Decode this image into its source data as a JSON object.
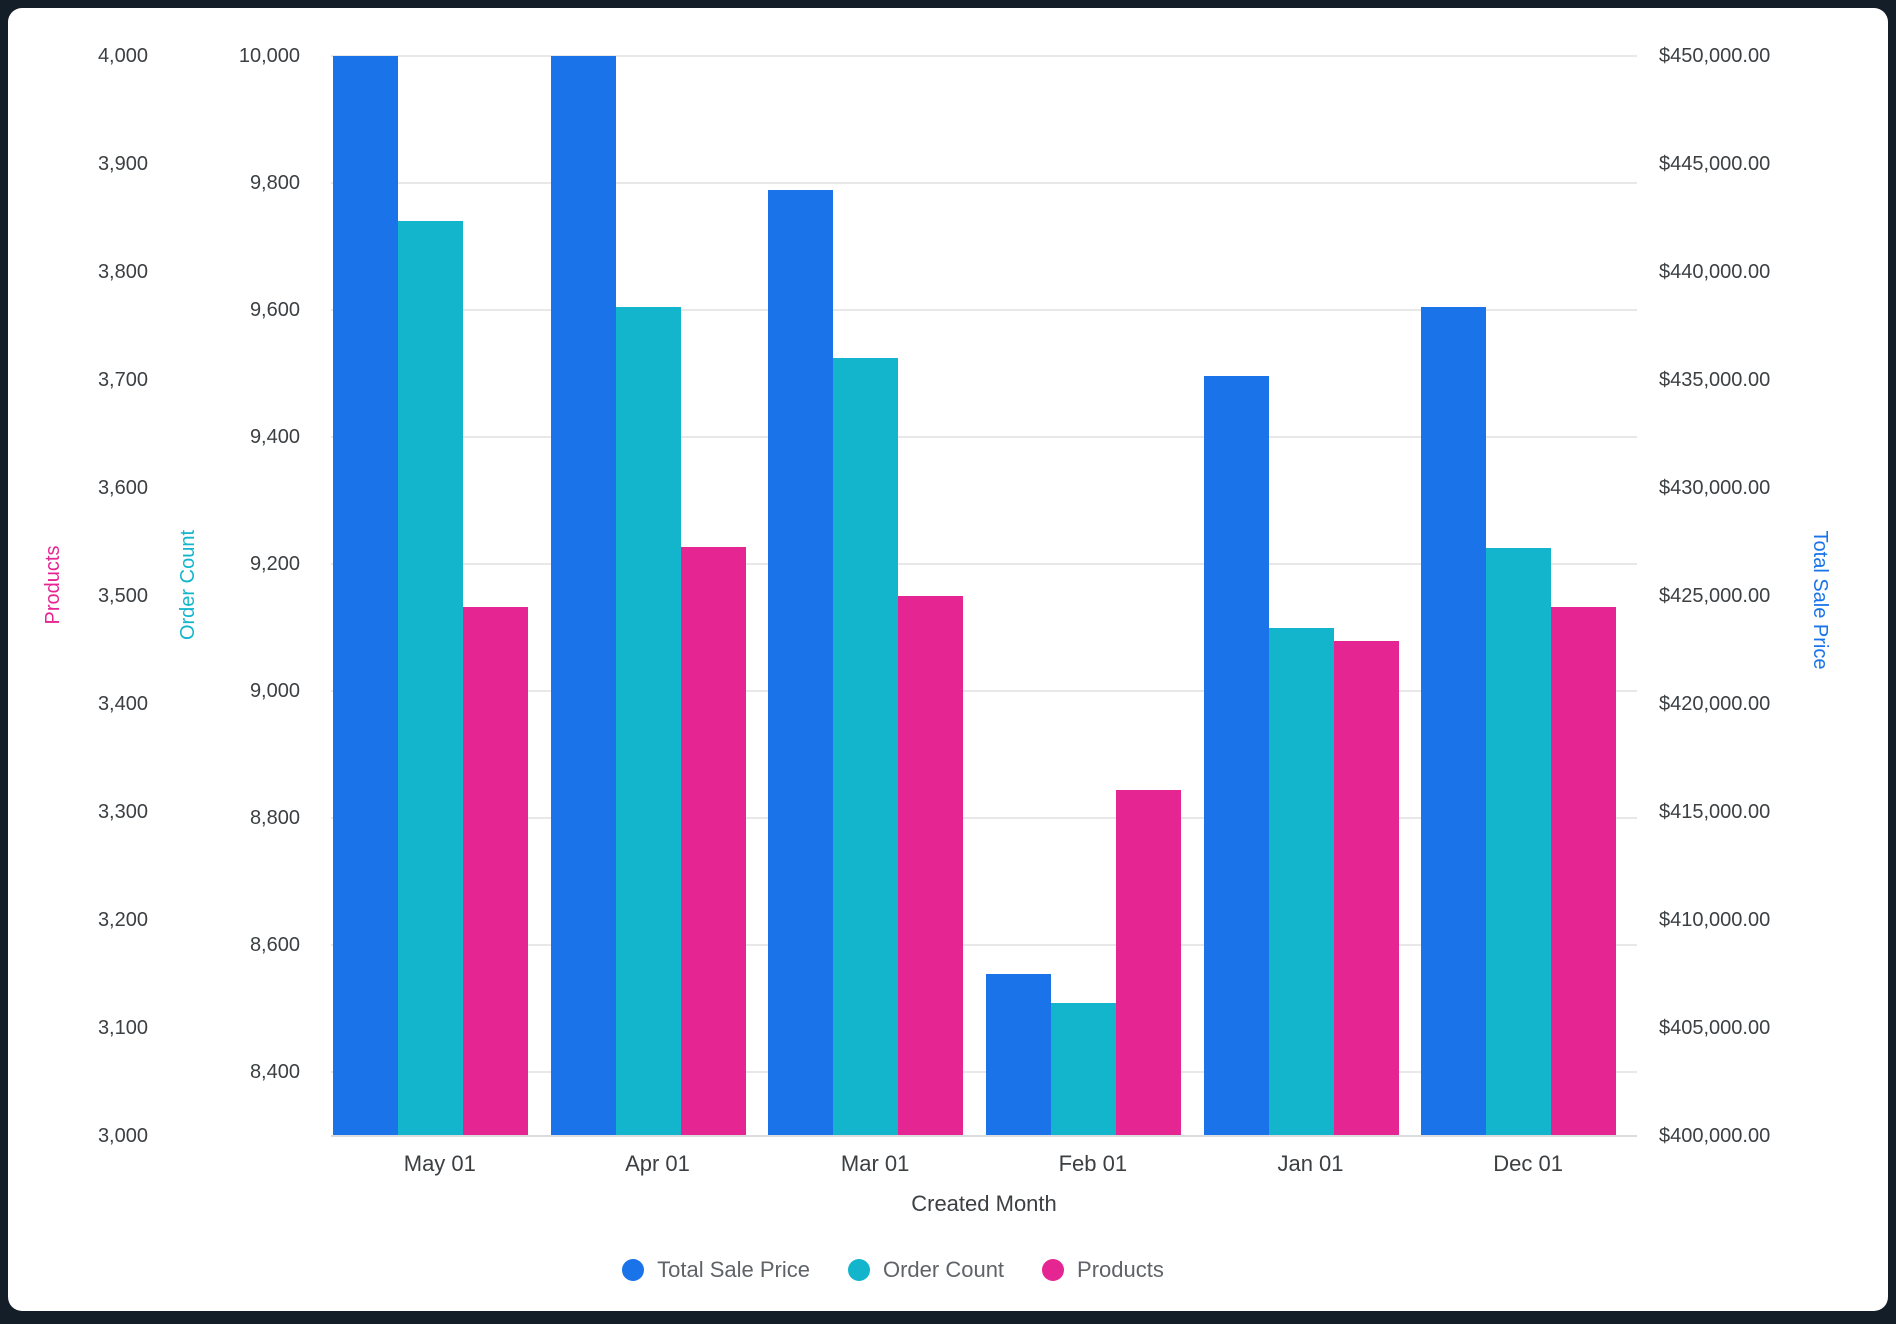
{
  "chart_data": {
    "type": "bar",
    "title": "",
    "xlabel": "Created Month",
    "legend_position": "bottom",
    "grid": "horizontal-only",
    "grid_color": "#E8E8E8",
    "categories": [
      "May 01",
      "Apr 01",
      "Mar 01",
      "Feb 01",
      "Jan 01",
      "Dec 01"
    ],
    "series": [
      {
        "name": "Total Sale Price",
        "axis": "tsp",
        "color": "#1A73E8",
        "values": [
          450000,
          450000,
          443800,
          407500,
          435200,
          438400
        ]
      },
      {
        "name": "Order Count",
        "axis": "order",
        "color": "#12B5CB",
        "values": [
          9740,
          9605,
          9525,
          8510,
          9100,
          9225
        ]
      },
      {
        "name": "Products",
        "axis": "products",
        "color": "#E52592",
        "values": [
          3490,
          3545,
          3500,
          3320,
          3458,
          3490
        ]
      }
    ],
    "axes": {
      "products": {
        "title": "Products",
        "color": "#E52592",
        "side": "left-outer",
        "min": 3000,
        "max": 4000,
        "tick_values": [
          3000,
          3100,
          3200,
          3300,
          3400,
          3500,
          3600,
          3700,
          3800,
          3900,
          4000
        ],
        "tick_labels": [
          "3,000",
          "3,100",
          "3,200",
          "3,300",
          "3,400",
          "3,500",
          "3,600",
          "3,700",
          "3,800",
          "3,900",
          "4,000"
        ]
      },
      "order": {
        "title": "Order Count",
        "color": "#12B5CB",
        "side": "left-inner",
        "min": 8300,
        "max": 10000,
        "gridlines": true,
        "tick_values": [
          8400,
          8600,
          8800,
          9000,
          9200,
          9400,
          9600,
          9800,
          10000
        ],
        "tick_labels": [
          "8,400",
          "8,600",
          "8,800",
          "9,000",
          "9,200",
          "9,400",
          "9,600",
          "9,800",
          "10,000"
        ]
      },
      "tsp": {
        "title": "Total Sale Price",
        "color": "#1A73E8",
        "side": "right",
        "min": 400000,
        "max": 450000,
        "tick_values": [
          400000,
          405000,
          410000,
          415000,
          420000,
          425000,
          430000,
          435000,
          440000,
          445000,
          450000
        ],
        "tick_labels": [
          "$400,000.00",
          "$405,000.00",
          "$410,000.00",
          "$415,000.00",
          "$420,000.00",
          "$425,000.00",
          "$430,000.00",
          "$435,000.00",
          "$440,000.00",
          "$445,000.00",
          "$450,000.00"
        ]
      }
    }
  }
}
